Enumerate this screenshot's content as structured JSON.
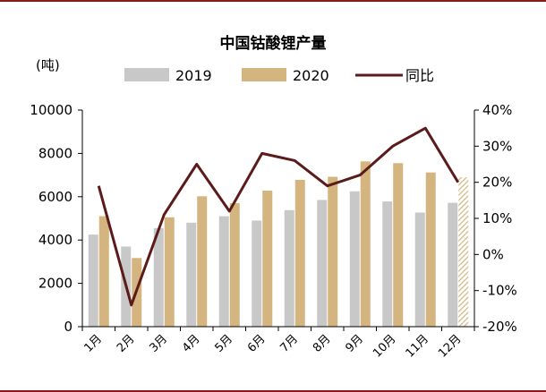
{
  "chart_data": {
    "type": "bar",
    "title": "中国钴酸锂产量",
    "left_unit": "(吨)",
    "categories": [
      "1月",
      "2月",
      "3月",
      "4月",
      "5月",
      "6月",
      "7月",
      "8月",
      "9月",
      "10月",
      "11月",
      "12月"
    ],
    "series": [
      {
        "name": "2019",
        "kind": "bar",
        "axis": "left",
        "color": "#C8C8C8",
        "values": [
          4250,
          3700,
          4550,
          4800,
          5100,
          4900,
          5380,
          5850,
          6250,
          5780,
          5270,
          5720
        ]
      },
      {
        "name": "2020",
        "kind": "bar",
        "axis": "left",
        "color": "#D4B47F",
        "values": [
          5100,
          3170,
          5050,
          6020,
          5700,
          6280,
          6780,
          6920,
          7630,
          7550,
          7120,
          6900
        ],
        "hatched_last": true
      },
      {
        "name": "同比",
        "kind": "line",
        "axis": "right",
        "color": "#5B1B1B",
        "values": [
          19,
          -14,
          11,
          25,
          12,
          28,
          26,
          19,
          22,
          30,
          35,
          20
        ]
      }
    ],
    "ylim_left": [
      0,
      10000
    ],
    "yticks_left": [
      "0",
      "2000",
      "4000",
      "6000",
      "8000",
      "10000"
    ],
    "ylim_right": [
      -20,
      40
    ],
    "yticks_right": [
      "-20%",
      "-10%",
      "0%",
      "10%",
      "20%",
      "30%",
      "40%"
    ],
    "legend": [
      "2019",
      "2020",
      "同比"
    ],
    "legend_position": "top"
  },
  "colors": {
    "frame": "#8B1A1A",
    "axis": "#000000"
  }
}
